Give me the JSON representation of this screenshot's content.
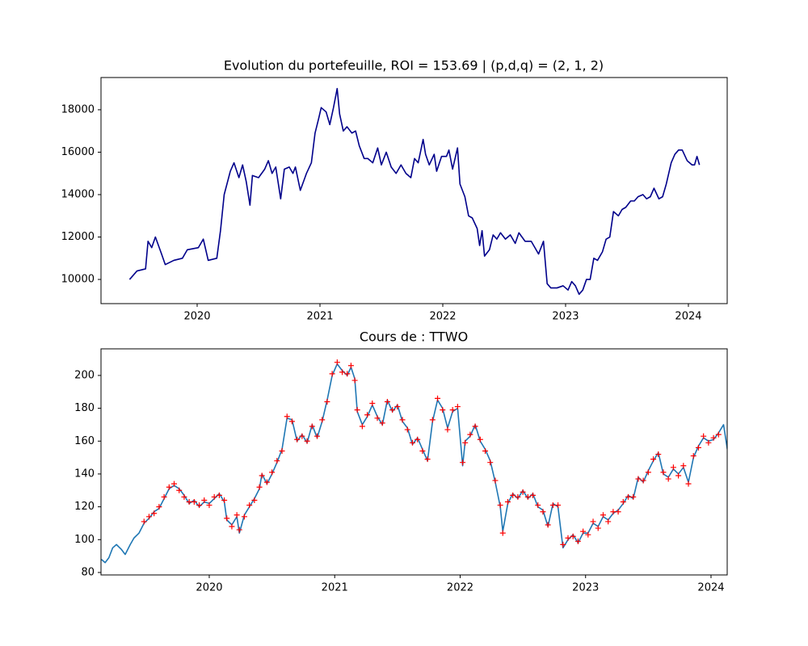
{
  "chart_data": [
    {
      "type": "line",
      "title": "Evolution du portefeuille, ROI = 153.69  |  (p,d,q) = (2, 1, 2)",
      "xlim": [
        2019.217,
        2024.316
      ],
      "xticks": [
        2020,
        2021,
        2022,
        2023,
        2024
      ],
      "ylim": [
        8860,
        19520
      ],
      "yticks": [
        10000,
        12000,
        14000,
        16000,
        18000
      ],
      "x": [
        2019.45,
        2019.51,
        2019.58,
        2019.6,
        2019.63,
        2019.66,
        2019.71,
        2019.74,
        2019.81,
        2019.88,
        2019.92,
        2020.01,
        2020.05,
        2020.09,
        2020.16,
        2020.19,
        2020.22,
        2020.27,
        2020.3,
        2020.34,
        2020.37,
        2020.4,
        2020.43,
        2020.45,
        2020.5,
        2020.55,
        2020.58,
        2020.61,
        2020.64,
        2020.68,
        2020.71,
        2020.75,
        2020.78,
        2020.8,
        2020.84,
        2020.89,
        2020.93,
        2020.96,
        2020.99,
        2021.01,
        2021.05,
        2021.08,
        2021.11,
        2021.14,
        2021.16,
        2021.19,
        2021.22,
        2021.26,
        2021.29,
        2021.32,
        2021.36,
        2021.39,
        2021.43,
        2021.47,
        2021.5,
        2021.54,
        2021.58,
        2021.62,
        2021.66,
        2021.7,
        2021.74,
        2021.77,
        2021.8,
        2021.84,
        2021.86,
        2021.89,
        2021.93,
        2021.95,
        2021.99,
        2022.03,
        2022.05,
        2022.08,
        2022.12,
        2022.14,
        2022.18,
        2022.21,
        2022.24,
        2022.28,
        2022.3,
        2022.32,
        2022.34,
        2022.38,
        2022.41,
        2022.44,
        2022.47,
        2022.51,
        2022.55,
        2022.59,
        2022.62,
        2022.67,
        2022.72,
        2022.75,
        2022.78,
        2022.82,
        2022.85,
        2022.88,
        2022.93,
        2022.98,
        2023.02,
        2023.05,
        2023.08,
        2023.11,
        2023.14,
        2023.17,
        2023.2,
        2023.23,
        2023.26,
        2023.3,
        2023.33,
        2023.36,
        2023.39,
        2023.43,
        2023.46,
        2023.49,
        2023.53,
        2023.56,
        2023.59,
        2023.63,
        2023.66,
        2023.69,
        2023.72,
        2023.76,
        2023.79,
        2023.82,
        2023.86,
        2023.89,
        2023.92,
        2023.95,
        2023.99,
        2024.03,
        2024.05,
        2024.07,
        2024.09
      ],
      "series": [
        {
          "color": "#00008b",
          "style": "line",
          "values": [
            10000,
            10400,
            10500,
            11800,
            11500,
            12000,
            11200,
            10700,
            10900,
            11000,
            11400,
            11500,
            11900,
            10900,
            11000,
            12300,
            14000,
            15100,
            15500,
            14800,
            15400,
            14600,
            13500,
            14900,
            14800,
            15200,
            15600,
            15000,
            15300,
            13800,
            15200,
            15300,
            15000,
            15300,
            14200,
            15000,
            15500,
            16900,
            17600,
            18100,
            17900,
            17300,
            18100,
            19000,
            17800,
            17000,
            17200,
            16900,
            17000,
            16300,
            15700,
            15700,
            15500,
            16200,
            15400,
            16000,
            15300,
            15000,
            15400,
            15000,
            14800,
            15700,
            15500,
            16600,
            15900,
            15400,
            15900,
            15100,
            15800,
            15800,
            16100,
            15200,
            16200,
            14500,
            13900,
            13000,
            12900,
            12400,
            11600,
            12300,
            11100,
            11400,
            12100,
            11900,
            12200,
            11900,
            12100,
            11700,
            12200,
            11800,
            11800,
            11500,
            11200,
            11800,
            9800,
            9600,
            9600,
            9700,
            9500,
            9900,
            9700,
            9300,
            9500,
            10000,
            10000,
            11000,
            10900,
            11300,
            11900,
            12000,
            13200,
            13000,
            13300,
            13400,
            13700,
            13700,
            13900,
            14000,
            13800,
            13900,
            14300,
            13800,
            13900,
            14500,
            15500,
            15900,
            16100,
            16100,
            15600,
            15400,
            15400,
            15800,
            15400
          ]
        }
      ]
    },
    {
      "type": "line",
      "title": "Cours de : TTWO",
      "xlim": [
        2019.137,
        2024.129
      ],
      "xticks": [
        2020,
        2021,
        2022,
        2023,
        2024
      ],
      "ylim": [
        78.5,
        216.2
      ],
      "yticks": [
        80,
        100,
        120,
        140,
        160,
        180,
        200
      ],
      "x": [
        2019.14,
        2019.17,
        2019.2,
        2019.23,
        2019.26,
        2019.3,
        2019.33,
        2019.37,
        2019.4,
        2019.44,
        2019.48,
        2019.52,
        2019.56,
        2019.6,
        2019.64,
        2019.68,
        2019.72,
        2019.76,
        2019.8,
        2019.84,
        2019.88,
        2019.92,
        2019.96,
        2020.0,
        2020.04,
        2020.08,
        2020.12,
        2020.14,
        2020.18,
        2020.22,
        2020.24,
        2020.28,
        2020.32,
        2020.36,
        2020.4,
        2020.42,
        2020.46,
        2020.5,
        2020.54,
        2020.58,
        2020.62,
        2020.66,
        2020.7,
        2020.74,
        2020.78,
        2020.82,
        2020.86,
        2020.9,
        2020.94,
        2020.98,
        2021.02,
        2021.06,
        2021.1,
        2021.13,
        2021.16,
        2021.18,
        2021.22,
        2021.26,
        2021.3,
        2021.34,
        2021.38,
        2021.42,
        2021.46,
        2021.5,
        2021.54,
        2021.58,
        2021.62,
        2021.66,
        2021.7,
        2021.74,
        2021.78,
        2021.82,
        2021.86,
        2021.9,
        2021.94,
        2021.98,
        2022.02,
        2022.04,
        2022.08,
        2022.12,
        2022.16,
        2022.2,
        2022.24,
        2022.28,
        2022.32,
        2022.34,
        2022.38,
        2022.42,
        2022.46,
        2022.5,
        2022.54,
        2022.58,
        2022.62,
        2022.66,
        2022.7,
        2022.74,
        2022.78,
        2022.82,
        2022.86,
        2022.9,
        2022.94,
        2022.98,
        2023.02,
        2023.06,
        2023.1,
        2023.14,
        2023.18,
        2023.22,
        2023.26,
        2023.3,
        2023.34,
        2023.38,
        2023.42,
        2023.46,
        2023.5,
        2023.54,
        2023.58,
        2023.62,
        2023.66,
        2023.7,
        2023.74,
        2023.78,
        2023.82,
        2023.86,
        2023.9,
        2023.94,
        2023.98,
        2024.02,
        2024.06,
        2024.1,
        2024.13
      ],
      "series": [
        {
          "color": "#1f77b4",
          "style": "line",
          "values": [
            88,
            86,
            89,
            95,
            97,
            94,
            91,
            97,
            101,
            104,
            110,
            113,
            117,
            119,
            125,
            131,
            133,
            131,
            127,
            122,
            124,
            120,
            123,
            122,
            125,
            128,
            123,
            112,
            109,
            114,
            104,
            115,
            120,
            125,
            131,
            140,
            134,
            140,
            147,
            155,
            174,
            173,
            160,
            164,
            159,
            170,
            162,
            172,
            185,
            200,
            207,
            203,
            200,
            205,
            198,
            178,
            170,
            175,
            182,
            175,
            170,
            185,
            178,
            182,
            172,
            168,
            158,
            162,
            155,
            148,
            172,
            185,
            180,
            168,
            178,
            180,
            145,
            160,
            163,
            170,
            160,
            155,
            148,
            135,
            120,
            105,
            122,
            128,
            125,
            130,
            125,
            128,
            120,
            118,
            108,
            122,
            120,
            95,
            100,
            103,
            98,
            104,
            104,
            110,
            108,
            114,
            112,
            116,
            118,
            122,
            127,
            125,
            138,
            135,
            142,
            148,
            153,
            140,
            138,
            143,
            140,
            144,
            135,
            150,
            157,
            162,
            160,
            161,
            165,
            170,
            155
          ]
        },
        {
          "color": "#ff0000",
          "style": "markers",
          "values": [
            null,
            null,
            null,
            null,
            null,
            null,
            null,
            null,
            null,
            null,
            111,
            114,
            116,
            120,
            126,
            132,
            134,
            130,
            126,
            123,
            123,
            121,
            124,
            121,
            126,
            127,
            124,
            113,
            108,
            115,
            106,
            114,
            121,
            124,
            132,
            139,
            135,
            141,
            148,
            154,
            175,
            172,
            161,
            163,
            160,
            169,
            163,
            173,
            184,
            201,
            208,
            202,
            201,
            206,
            197,
            179,
            169,
            176,
            183,
            174,
            171,
            184,
            179,
            181,
            173,
            167,
            159,
            161,
            154,
            149,
            173,
            186,
            179,
            167,
            179,
            181,
            147,
            159,
            164,
            169,
            161,
            154,
            147,
            136,
            121,
            104,
            123,
            127,
            126,
            129,
            126,
            127,
            121,
            117,
            109,
            121,
            121,
            97,
            101,
            102,
            99,
            105,
            103,
            111,
            107,
            115,
            111,
            117,
            117,
            123,
            126,
            126,
            137,
            136,
            141,
            149,
            152,
            141,
            137,
            144,
            139,
            145,
            134,
            151,
            156,
            163,
            159,
            162,
            164,
            null,
            null
          ]
        }
      ]
    }
  ]
}
